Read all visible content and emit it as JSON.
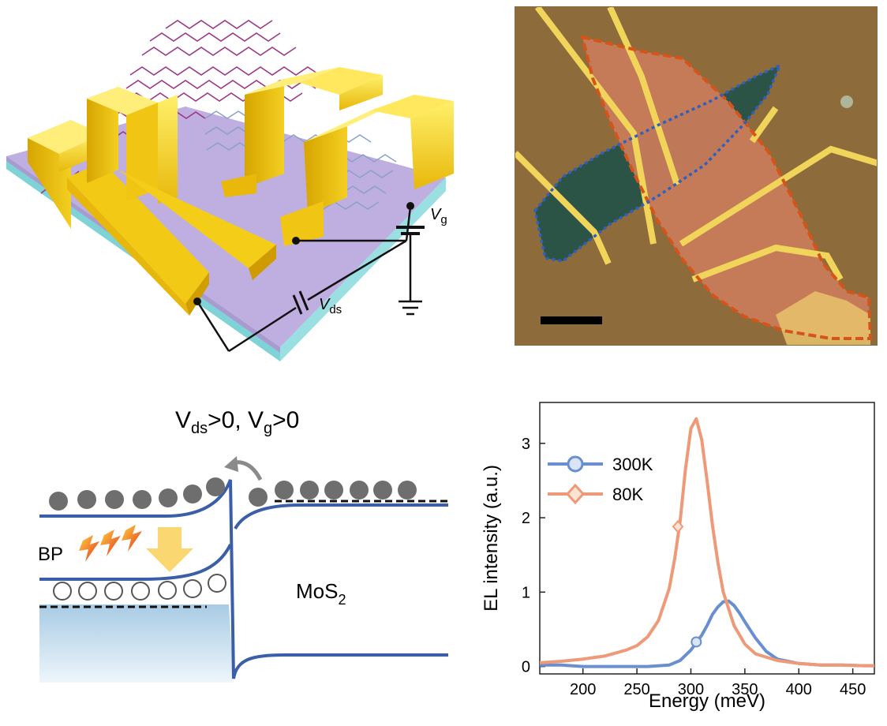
{
  "device": {
    "vg_label": "V",
    "vg_sub": "g",
    "vds_label": "V",
    "vds_sub": "ds"
  },
  "band": {
    "title_v1": "V",
    "title_sub1": "ds",
    "title_mid": ">0, V",
    "title_sub2": "g",
    "title_end": ">0",
    "bp_label": "BP",
    "mos2_label": "MoS",
    "mos2_sub": "2"
  },
  "colors": {
    "series_300K": "#6a8fd0",
    "series_80K": "#ee9a78",
    "gold": "#f5d21c",
    "band_line": "#3a5ea8"
  },
  "chart_data": {
    "type": "line",
    "xlabel": "Energy (meV)",
    "ylabel": "EL intensity (a.u.)",
    "xlim": [
      160,
      470
    ],
    "ylim": [
      -0.1,
      3.55
    ],
    "xticks": [
      200,
      250,
      300,
      350,
      400,
      450
    ],
    "yticks": [
      0,
      1,
      2,
      3
    ],
    "legend_position": "top-left",
    "series": [
      {
        "name": "300K",
        "color": "#6a8fd0",
        "x": [
          160,
          180,
          200,
          220,
          240,
          260,
          280,
          290,
          300,
          310,
          315,
          320,
          325,
          330,
          335,
          340,
          345,
          350,
          360,
          370,
          380,
          400,
          420,
          440,
          460,
          470
        ],
        "y": [
          0.02,
          0.02,
          0.0,
          0.0,
          0.0,
          0.0,
          0.02,
          0.08,
          0.22,
          0.42,
          0.55,
          0.7,
          0.8,
          0.87,
          0.88,
          0.82,
          0.72,
          0.6,
          0.38,
          0.2,
          0.1,
          0.04,
          0.02,
          0.02,
          0.01,
          0.01
        ],
        "marker": "circle",
        "marker_point": [
          305,
          0.33
        ]
      },
      {
        "name": "80K",
        "color": "#ee9a78",
        "x": [
          160,
          180,
          200,
          220,
          240,
          250,
          260,
          270,
          280,
          285,
          290,
          295,
          300,
          305,
          310,
          315,
          320,
          325,
          330,
          340,
          350,
          360,
          380,
          400,
          420,
          440,
          460,
          470
        ],
        "y": [
          0.05,
          0.07,
          0.1,
          0.14,
          0.22,
          0.28,
          0.4,
          0.62,
          1.05,
          1.45,
          1.95,
          2.65,
          3.2,
          3.33,
          3.05,
          2.5,
          1.9,
          1.4,
          1.0,
          0.55,
          0.3,
          0.17,
          0.08,
          0.04,
          0.02,
          0.02,
          0.01,
          0.01
        ],
        "marker": "diamond",
        "marker_point": [
          288,
          1.88
        ]
      }
    ]
  }
}
